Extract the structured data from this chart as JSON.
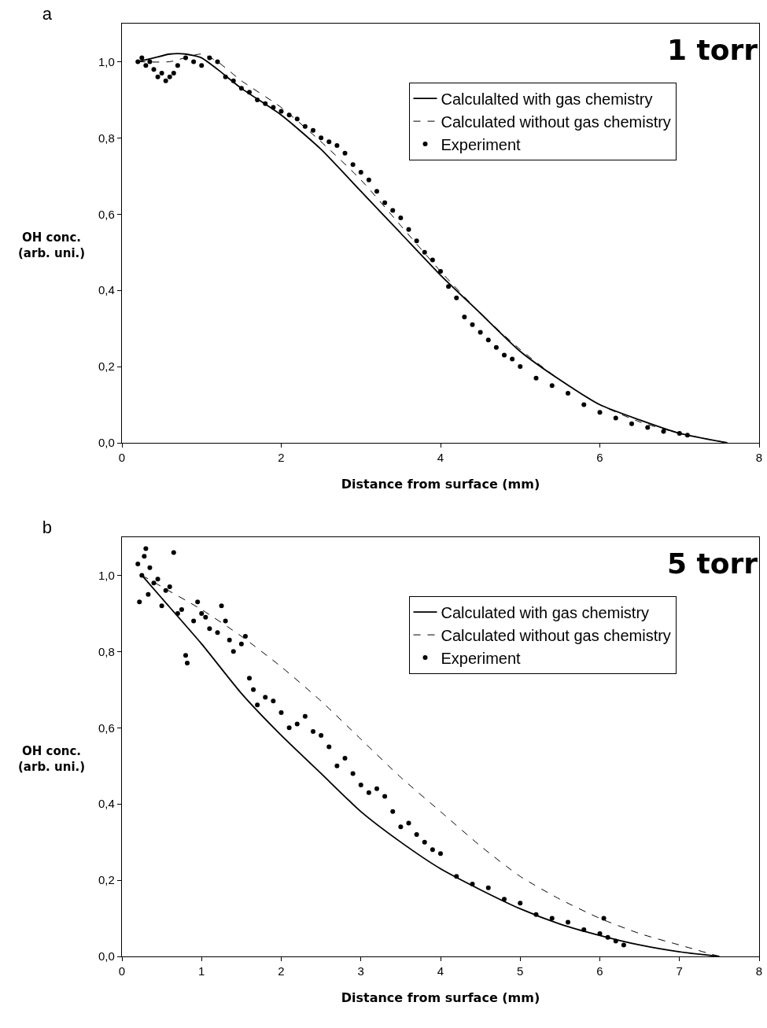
{
  "chart_data": [
    {
      "type": "scatter",
      "title": "a",
      "xlabel": "Distance from surface (mm)",
      "ylabel": "OH conc.\n(arb. uni.)",
      "annotations": [
        "1 torr"
      ],
      "xlim": [
        0,
        8
      ],
      "ylim": [
        0,
        1.1
      ],
      "xticks": [
        0,
        2,
        4,
        6,
        8
      ],
      "yticks": [
        {
          "value": 0,
          "label": "0,0"
        },
        {
          "value": 0.2,
          "label": "0,2"
        },
        {
          "value": 0.4,
          "label": "0,4"
        },
        {
          "value": 0.6,
          "label": "0,6"
        },
        {
          "value": 0.8,
          "label": "0,8"
        },
        {
          "value": 1,
          "label": "1,0"
        }
      ],
      "grid": false,
      "legend": "top right",
      "series": [
        {
          "name": "Calculalted with gas chemistry",
          "type": "line",
          "line_style": "solid",
          "marker": "none",
          "color": "#000000",
          "x": [
            0.2,
            0.4,
            0.6,
            0.8,
            1.0,
            1.2,
            1.5,
            2,
            2.5,
            3,
            3.5,
            4,
            4.5,
            5,
            5.5,
            6,
            6.5,
            7,
            7.6
          ],
          "values": [
            1.0,
            1.01,
            1.02,
            1.02,
            1.01,
            0.98,
            0.93,
            0.86,
            0.77,
            0.66,
            0.55,
            0.44,
            0.34,
            0.24,
            0.165,
            0.1,
            0.06,
            0.025,
            0.0
          ]
        },
        {
          "name": "Calculated without gas chemistry",
          "type": "line",
          "line_style": "dashed",
          "marker": "none",
          "color": "#000000",
          "x": [
            0.2,
            0.6,
            1.0,
            1.2,
            1.5,
            2,
            2.5,
            3,
            3.5,
            4,
            4.5,
            5,
            5.5,
            6,
            6.5,
            7,
            7.6
          ],
          "values": [
            1.0,
            1.0,
            1.02,
            1.0,
            0.95,
            0.88,
            0.79,
            0.69,
            0.57,
            0.45,
            0.34,
            0.245,
            0.165,
            0.1,
            0.055,
            0.025,
            0.0
          ]
        },
        {
          "name": "Experiment",
          "marker": "circle",
          "color": "#000000",
          "x": [
            0.2,
            0.25,
            0.3,
            0.35,
            0.4,
            0.45,
            0.5,
            0.55,
            0.6,
            0.65,
            0.7,
            0.8,
            0.9,
            1.0,
            1.1,
            1.2,
            1.3,
            1.4,
            1.5,
            1.6,
            1.7,
            1.8,
            1.9,
            2.0,
            2.1,
            2.2,
            2.3,
            2.4,
            2.5,
            2.6,
            2.7,
            2.8,
            2.9,
            3.0,
            3.1,
            3.2,
            3.3,
            3.4,
            3.5,
            3.6,
            3.7,
            3.8,
            3.9,
            4.0,
            4.1,
            4.2,
            4.3,
            4.4,
            4.5,
            4.6,
            4.7,
            4.8,
            4.9,
            5.0,
            5.2,
            5.4,
            5.6,
            5.8,
            6.0,
            6.2,
            6.4,
            6.6,
            6.8,
            7.0,
            7.1
          ],
          "values": [
            1.0,
            1.01,
            0.99,
            1.0,
            0.98,
            0.96,
            0.97,
            0.95,
            0.96,
            0.97,
            0.99,
            1.01,
            1.0,
            0.99,
            1.01,
            1.0,
            0.96,
            0.95,
            0.93,
            0.92,
            0.9,
            0.89,
            0.88,
            0.87,
            0.86,
            0.85,
            0.83,
            0.82,
            0.8,
            0.79,
            0.78,
            0.76,
            0.73,
            0.71,
            0.69,
            0.66,
            0.63,
            0.61,
            0.59,
            0.56,
            0.53,
            0.5,
            0.48,
            0.45,
            0.41,
            0.38,
            0.33,
            0.31,
            0.29,
            0.27,
            0.25,
            0.23,
            0.22,
            0.2,
            0.17,
            0.15,
            0.13,
            0.1,
            0.08,
            0.065,
            0.05,
            0.04,
            0.03,
            0.025,
            0.02
          ]
        }
      ]
    },
    {
      "type": "scatter",
      "title": "b",
      "xlabel": "Distance from surface (mm)",
      "ylabel": "OH conc.\n(arb. uni.)",
      "annotations": [
        "5 torr"
      ],
      "xlim": [
        0,
        8
      ],
      "ylim": [
        0,
        1.1
      ],
      "xticks": [
        0,
        1,
        2,
        3,
        4,
        5,
        6,
        7,
        8
      ],
      "yticks": [
        {
          "value": 0,
          "label": "0,0"
        },
        {
          "value": 0.2,
          "label": "0,2"
        },
        {
          "value": 0.4,
          "label": "0,4"
        },
        {
          "value": 0.6,
          "label": "0,6"
        },
        {
          "value": 0.8,
          "label": "0,8"
        },
        {
          "value": 1,
          "label": "1,0"
        }
      ],
      "grid": false,
      "legend": "top right",
      "series": [
        {
          "name": "Calculated with gas chemistry",
          "type": "line",
          "line_style": "solid",
          "marker": "none",
          "color": "#000000",
          "x": [
            0.25,
            0.5,
            1,
            1.5,
            2,
            2.5,
            3,
            3.5,
            4,
            4.5,
            5,
            5.5,
            6,
            6.5,
            7,
            7.5
          ],
          "values": [
            1.0,
            0.94,
            0.82,
            0.69,
            0.58,
            0.48,
            0.38,
            0.3,
            0.23,
            0.175,
            0.125,
            0.085,
            0.055,
            0.03,
            0.012,
            0.0
          ]
        },
        {
          "name": "Calculated without gas chemistry",
          "type": "line",
          "line_style": "dashed",
          "marker": "none",
          "color": "#000000",
          "x": [
            0.25,
            0.5,
            1,
            1.5,
            2,
            2.5,
            3,
            3.5,
            4,
            4.5,
            5,
            5.5,
            6,
            6.5,
            7,
            7.5
          ],
          "values": [
            1.0,
            0.97,
            0.91,
            0.84,
            0.76,
            0.67,
            0.57,
            0.47,
            0.38,
            0.29,
            0.21,
            0.15,
            0.1,
            0.06,
            0.03,
            0.0
          ]
        },
        {
          "name": "Experiment",
          "marker": "circle",
          "color": "#000000",
          "x": [
            0.2,
            0.22,
            0.25,
            0.28,
            0.3,
            0.33,
            0.35,
            0.4,
            0.45,
            0.5,
            0.55,
            0.6,
            0.65,
            0.7,
            0.75,
            0.8,
            0.82,
            0.9,
            0.95,
            1.0,
            1.05,
            1.1,
            1.2,
            1.25,
            1.3,
            1.35,
            1.4,
            1.5,
            1.55,
            1.6,
            1.65,
            1.7,
            1.8,
            1.9,
            2.0,
            2.1,
            2.2,
            2.3,
            2.4,
            2.5,
            2.6,
            2.7,
            2.8,
            2.9,
            3.0,
            3.1,
            3.2,
            3.3,
            3.4,
            3.5,
            3.6,
            3.7,
            3.8,
            3.9,
            4.0,
            4.2,
            4.4,
            4.6,
            4.8,
            5.0,
            5.2,
            5.4,
            5.6,
            5.8,
            6.0,
            6.05,
            6.1,
            6.2,
            6.3
          ],
          "values": [
            1.03,
            0.93,
            1.0,
            1.05,
            1.07,
            0.95,
            1.02,
            0.98,
            0.99,
            0.92,
            0.96,
            0.97,
            1.06,
            0.9,
            0.91,
            0.79,
            0.77,
            0.88,
            0.93,
            0.9,
            0.89,
            0.86,
            0.85,
            0.92,
            0.88,
            0.83,
            0.8,
            0.82,
            0.84,
            0.73,
            0.7,
            0.66,
            0.68,
            0.67,
            0.64,
            0.6,
            0.61,
            0.63,
            0.59,
            0.58,
            0.55,
            0.5,
            0.52,
            0.48,
            0.45,
            0.43,
            0.44,
            0.42,
            0.38,
            0.34,
            0.35,
            0.32,
            0.3,
            0.28,
            0.27,
            0.21,
            0.19,
            0.18,
            0.15,
            0.14,
            0.11,
            0.1,
            0.09,
            0.07,
            0.06,
            0.1,
            0.05,
            0.04,
            0.03
          ]
        }
      ]
    }
  ]
}
